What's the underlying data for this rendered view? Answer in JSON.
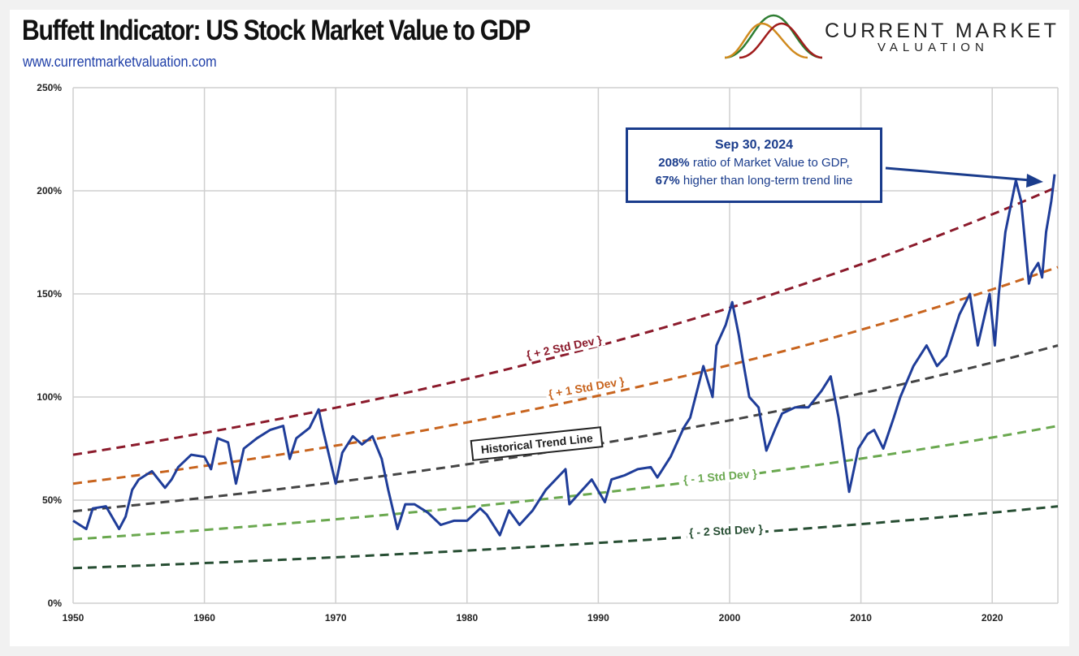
{
  "header": {
    "title": "Buffett Indicator: US Stock Market Value to GDP",
    "url": "www.currentmarketvaluation.com",
    "logo_line1": "CURRENT MARKET",
    "logo_line2": "VALUATION"
  },
  "annotation": {
    "date": "Sep 30, 2024",
    "line1_bold": "208%",
    "line1_rest": " ratio of Market Value to GDP,",
    "line2_bold": "67%",
    "line2_rest": " higher than long-term trend line"
  },
  "band_labels": {
    "plus2": "{ + 2 Std Dev }",
    "plus1": "{ + 1 Std Dev }",
    "trend": "Historical Trend Line",
    "minus1": "{ - 1 Std Dev }",
    "minus2": "{ - 2 Std Dev }"
  },
  "chart_data": {
    "type": "line",
    "title": "Buffett Indicator: US Stock Market Value to GDP",
    "xlim": [
      1950,
      2025
    ],
    "ylim": [
      0,
      250
    ],
    "x_ticks": [
      "1950",
      "1960",
      "1970",
      "1980",
      "1990",
      "2000",
      "2010",
      "2020"
    ],
    "y_ticks": [
      "0%",
      "50%",
      "100%",
      "150%",
      "200%",
      "250%"
    ],
    "grid": true,
    "colors": {
      "series": "#1f3d99",
      "plus2": "#8b1a2b",
      "plus1": "#c8641e",
      "trend": "#444444",
      "minus1": "#6aa84f",
      "minus2": "#274e33"
    },
    "bands": [
      {
        "key": "plus2",
        "start": 72,
        "end": 202
      },
      {
        "key": "plus1",
        "start": 58,
        "end": 163
      },
      {
        "key": "trend",
        "start": 44.6,
        "end": 125
      },
      {
        "key": "minus1",
        "start": 31,
        "end": 86
      },
      {
        "key": "minus2",
        "start": 17,
        "end": 47
      }
    ],
    "series": [
      {
        "x": [
          1950,
          1951,
          1951.5,
          1952.5,
          1953.5,
          1954,
          1954.5,
          1955,
          1956,
          1957,
          1957.5,
          1958,
          1959,
          1960,
          1960.5,
          1961,
          1961.8,
          1962.4,
          1963,
          1964,
          1965,
          1966,
          1966.5,
          1967,
          1968,
          1968.7,
          1969,
          1970,
          1970.5,
          1971.3,
          1972,
          1972.8,
          1973.5,
          1974,
          1974.7,
          1975.3,
          1976,
          1977,
          1978,
          1979,
          1980,
          1981,
          1981.5,
          1982.5,
          1983.2,
          1984,
          1985,
          1986,
          1987.5,
          1987.8,
          1988.5,
          1989.5,
          1990.5,
          1991,
          1992,
          1993,
          1994,
          1994.5,
          1995.5,
          1996.5,
          1997,
          1998,
          1998.7,
          1999,
          1999.7,
          2000.2,
          2000.7,
          2001,
          2001.5,
          2002.2,
          2002.8,
          2003.5,
          2004,
          2005,
          2006,
          2007,
          2007.7,
          2008.3,
          2009.1,
          2009.8,
          2010.5,
          2011,
          2011.7,
          2012.5,
          2013,
          2014,
          2015,
          2015.8,
          2016.5,
          2017.5,
          2018.3,
          2018.9,
          2019.8,
          2020.2,
          2020.5,
          2021,
          2021.8,
          2022.2,
          2022.8,
          2023,
          2023.5,
          2023.8,
          2024.1,
          2024.5,
          2024.75
        ],
        "y": [
          40,
          36,
          46,
          47,
          36,
          42,
          55,
          60,
          64,
          56,
          60,
          66,
          72,
          71,
          65,
          80,
          78,
          58,
          75,
          80,
          84,
          86,
          70,
          80,
          85,
          94,
          85,
          58,
          73,
          81,
          77,
          81,
          70,
          55,
          36,
          48,
          48,
          44,
          38,
          40,
          40,
          46,
          43,
          33,
          45,
          38,
          45,
          55,
          65,
          48,
          53,
          60,
          49,
          60,
          62,
          65,
          66,
          61,
          71,
          85,
          90,
          115,
          100,
          125,
          135,
          146,
          130,
          118,
          100,
          95,
          74,
          85,
          92,
          95,
          95,
          103,
          110,
          90,
          54,
          75,
          82,
          84,
          75,
          90,
          100,
          115,
          125,
          115,
          120,
          140,
          150,
          125,
          150,
          125,
          150,
          180,
          205,
          195,
          155,
          160,
          165,
          158,
          180,
          195,
          208
        ]
      }
    ]
  }
}
